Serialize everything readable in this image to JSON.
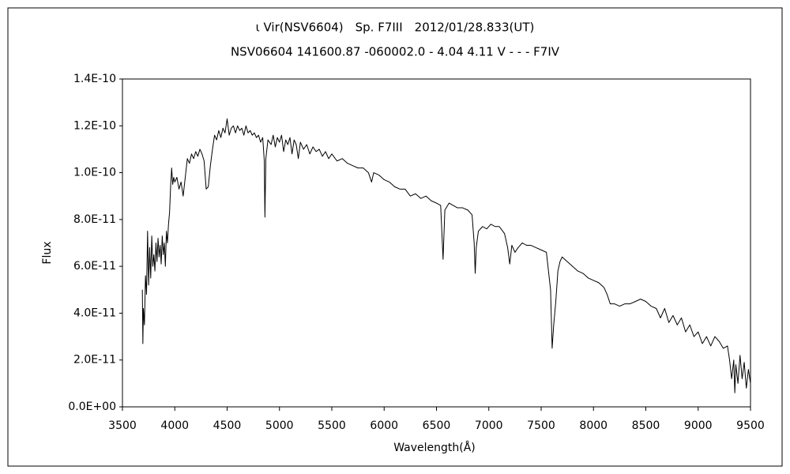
{
  "chart_data": {
    "type": "line",
    "title": "ι Vir(NSV6604)　Sp. F7III　2012/01/28.833(UT)",
    "subtitle": "NSV06604 141600.87 -060002.0 - 4.04 4.11 V - - - F7IV",
    "x_label": "Wavelength(Å)",
    "y_label": "Flux",
    "color": "#000000",
    "grid": false,
    "xlim": [
      3500,
      9500
    ],
    "xticks": [
      3500,
      4000,
      4500,
      5000,
      5500,
      6000,
      6500,
      7000,
      7500,
      8000,
      8500,
      9000,
      9500
    ],
    "ylim": [
      0,
      1.4e-10
    ],
    "yticks": [
      {
        "value": 0,
        "label": "0.0E+00"
      },
      {
        "value": 2e-11,
        "label": "2.0E-11"
      },
      {
        "value": 4e-11,
        "label": "4.0E-11"
      },
      {
        "value": 6e-11,
        "label": "6.0E-11"
      },
      {
        "value": 8e-11,
        "label": "8.0E-11"
      },
      {
        "value": 1e-10,
        "label": "1.0E-10"
      },
      {
        "value": 1.2e-10,
        "label": "1.2E-10"
      },
      {
        "value": 1.4e-10,
        "label": "1.4E-10"
      }
    ],
    "x": [
      3690,
      3695,
      3700,
      3710,
      3720,
      3730,
      3740,
      3750,
      3760,
      3770,
      3780,
      3790,
      3800,
      3810,
      3820,
      3830,
      3840,
      3850,
      3860,
      3870,
      3880,
      3890,
      3900,
      3910,
      3920,
      3930,
      3940,
      3950,
      3960,
      3970,
      3980,
      3990,
      4000,
      4020,
      4040,
      4060,
      4080,
      4100,
      4120,
      4140,
      4160,
      4180,
      4200,
      4220,
      4240,
      4260,
      4280,
      4300,
      4320,
      4340,
      4360,
      4380,
      4400,
      4420,
      4440,
      4460,
      4480,
      4500,
      4520,
      4540,
      4560,
      4580,
      4600,
      4620,
      4640,
      4660,
      4680,
      4700,
      4720,
      4740,
      4760,
      4780,
      4800,
      4820,
      4840,
      4855,
      4861,
      4870,
      4890,
      4920,
      4940,
      4960,
      4980,
      5000,
      5020,
      5040,
      5060,
      5080,
      5100,
      5120,
      5140,
      5160,
      5180,
      5200,
      5230,
      5260,
      5290,
      5320,
      5350,
      5380,
      5410,
      5440,
      5470,
      5500,
      5550,
      5600,
      5650,
      5700,
      5750,
      5800,
      5850,
      5880,
      5900,
      5950,
      6000,
      6050,
      6100,
      6150,
      6200,
      6250,
      6300,
      6350,
      6400,
      6450,
      6500,
      6540,
      6563,
      6580,
      6620,
      6660,
      6700,
      6750,
      6800,
      6840,
      6860,
      6870,
      6880,
      6900,
      6940,
      6980,
      7020,
      7060,
      7100,
      7150,
      7180,
      7200,
      7220,
      7250,
      7280,
      7320,
      7360,
      7400,
      7450,
      7500,
      7550,
      7590,
      7605,
      7620,
      7640,
      7660,
      7680,
      7700,
      7750,
      7800,
      7850,
      7900,
      7950,
      8000,
      8050,
      8100,
      8130,
      8160,
      8200,
      8250,
      8300,
      8350,
      8400,
      8450,
      8500,
      8550,
      8600,
      8640,
      8680,
      8720,
      8760,
      8800,
      8840,
      8880,
      8920,
      8960,
      9000,
      9040,
      9080,
      9120,
      9160,
      9200,
      9240,
      9280,
      9300,
      9320,
      9340,
      9350,
      9360,
      9380,
      9400,
      9420,
      9440,
      9460,
      9480,
      9500
    ],
    "values": [
      5e-11,
      2.7e-11,
      4.2e-11,
      3.5e-11,
      5.6e-11,
      4.8e-11,
      7.5e-11,
      5.2e-11,
      6.8e-11,
      5.5e-11,
      7.3e-11,
      6e-11,
      6.5e-11,
      5.8e-11,
      7e-11,
      6.2e-11,
      7.2e-11,
      6.4e-11,
      6.9e-11,
      6.1e-11,
      7.3e-11,
      6.5e-11,
      7e-11,
      6e-11,
      7.5e-11,
      7e-11,
      7.8e-11,
      8.3e-11,
      9.4e-11,
      1.02e-10,
      9.5e-11,
      9.8e-11,
      9.6e-11,
      9.8e-11,
      9.3e-11,
      9.6e-11,
      9e-11,
      9.8e-11,
      1.06e-10,
      1.04e-10,
      1.08e-10,
      1.06e-10,
      1.09e-10,
      1.07e-10,
      1.1e-10,
      1.08e-10,
      1.05e-10,
      9.3e-11,
      9.4e-11,
      1.03e-10,
      1.1e-10,
      1.16e-10,
      1.14e-10,
      1.18e-10,
      1.15e-10,
      1.19e-10,
      1.17e-10,
      1.23e-10,
      1.16e-10,
      1.19e-10,
      1.2e-10,
      1.17e-10,
      1.2e-10,
      1.18e-10,
      1.19e-10,
      1.16e-10,
      1.2e-10,
      1.17e-10,
      1.18e-10,
      1.16e-10,
      1.17e-10,
      1.15e-10,
      1.16e-10,
      1.13e-10,
      1.15e-10,
      1.05e-10,
      8.1e-11,
      1.06e-10,
      1.14e-10,
      1.12e-10,
      1.16e-10,
      1.11e-10,
      1.15e-10,
      1.13e-10,
      1.16e-10,
      1.09e-10,
      1.14e-10,
      1.12e-10,
      1.15e-10,
      1.08e-10,
      1.14e-10,
      1.12e-10,
      1.06e-10,
      1.13e-10,
      1.1e-10,
      1.12e-10,
      1.08e-10,
      1.11e-10,
      1.09e-10,
      1.1e-10,
      1.07e-10,
      1.09e-10,
      1.06e-10,
      1.08e-10,
      1.05e-10,
      1.06e-10,
      1.04e-10,
      1.03e-10,
      1.02e-10,
      1.02e-10,
      1e-10,
      9.6e-11,
      1e-10,
      9.9e-11,
      9.7e-11,
      9.6e-11,
      9.4e-11,
      9.3e-11,
      9.3e-11,
      9e-11,
      9.1e-11,
      8.9e-11,
      9e-11,
      8.8e-11,
      8.7e-11,
      8.6e-11,
      6.3e-11,
      8.4e-11,
      8.7e-11,
      8.6e-11,
      8.5e-11,
      8.5e-11,
      8.4e-11,
      8.2e-11,
      7e-11,
      5.7e-11,
      6.8e-11,
      7.5e-11,
      7.7e-11,
      7.6e-11,
      7.8e-11,
      7.7e-11,
      7.7e-11,
      7.4e-11,
      6.8e-11,
      6.1e-11,
      6.9e-11,
      6.6e-11,
      6.8e-11,
      7e-11,
      6.9e-11,
      6.9e-11,
      6.8e-11,
      6.7e-11,
      6.6e-11,
      5e-11,
      2.5e-11,
      3.5e-11,
      4.5e-11,
      5.8e-11,
      6.2e-11,
      6.4e-11,
      6.2e-11,
      6e-11,
      5.8e-11,
      5.7e-11,
      5.5e-11,
      5.4e-11,
      5.3e-11,
      5.1e-11,
      4.8e-11,
      4.4e-11,
      4.4e-11,
      4.3e-11,
      4.4e-11,
      4.4e-11,
      4.5e-11,
      4.6e-11,
      4.5e-11,
      4.3e-11,
      4.2e-11,
      3.8e-11,
      4.2e-11,
      3.6e-11,
      3.9e-11,
      3.5e-11,
      3.8e-11,
      3.2e-11,
      3.5e-11,
      3e-11,
      3.2e-11,
      2.7e-11,
      3e-11,
      2.6e-11,
      3e-11,
      2.8e-11,
      2.5e-11,
      2.6e-11,
      2e-11,
      1.2e-11,
      2e-11,
      6e-12,
      1.8e-11,
      1e-11,
      2.2e-11,
      1.2e-11,
      1.9e-11,
      8e-12,
      1.6e-11,
      1e-11
    ]
  }
}
